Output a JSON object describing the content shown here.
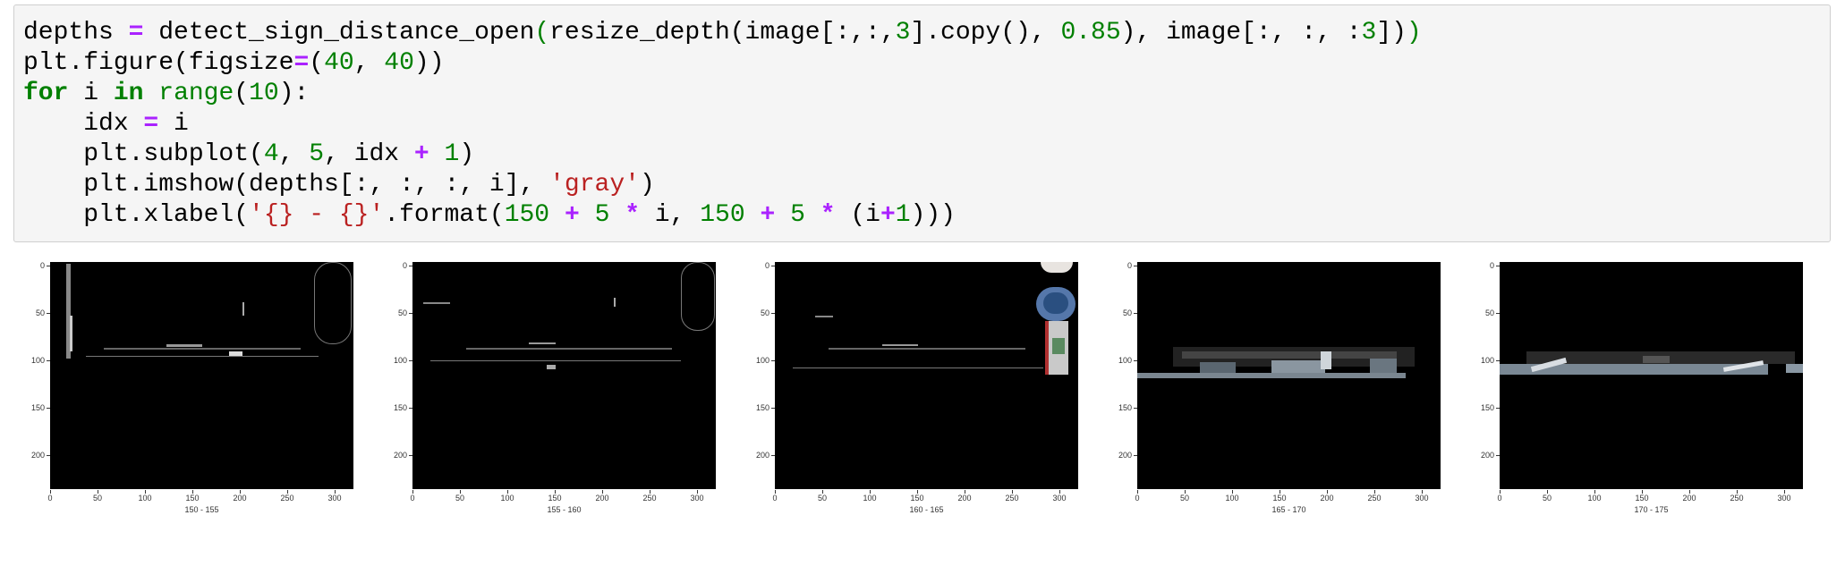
{
  "code_cell": {
    "lines": [
      [
        [
          "n",
          "depths "
        ],
        [
          "op",
          "="
        ],
        [
          "n",
          " detect_sign_distance_open"
        ],
        [
          "bi",
          "("
        ],
        [
          "n",
          "resize_depth(image[:,:,"
        ],
        [
          "num",
          "3"
        ],
        [
          "n",
          "].copy(), "
        ],
        [
          "num",
          "0.85"
        ],
        [
          "n",
          "), image[:, :, :"
        ],
        [
          "num",
          "3"
        ],
        [
          "n",
          "])"
        ],
        [
          "bi",
          ")"
        ]
      ],
      [
        [
          "n",
          "plt.figure(figsize"
        ],
        [
          "op",
          "="
        ],
        [
          "n",
          "("
        ],
        [
          "num",
          "40"
        ],
        [
          "n",
          ", "
        ],
        [
          "num",
          "40"
        ],
        [
          "n",
          "))"
        ]
      ],
      [
        [
          "kw",
          "for"
        ],
        [
          "n",
          " i "
        ],
        [
          "kw",
          "in"
        ],
        [
          "n",
          " "
        ],
        [
          "bi",
          "range"
        ],
        [
          "n",
          "("
        ],
        [
          "num",
          "10"
        ],
        [
          "n",
          "):"
        ]
      ],
      [
        [
          "n",
          "    idx "
        ],
        [
          "op",
          "="
        ],
        [
          "n",
          " i"
        ]
      ],
      [
        [
          "n",
          "    plt.subplot("
        ],
        [
          "num",
          "4"
        ],
        [
          "n",
          ", "
        ],
        [
          "num",
          "5"
        ],
        [
          "n",
          ", idx "
        ],
        [
          "op",
          "+"
        ],
        [
          "n",
          " "
        ],
        [
          "num",
          "1"
        ],
        [
          "n",
          ")"
        ]
      ],
      [
        [
          "n",
          "    plt.imshow(depths[:, :, :, i], "
        ],
        [
          "str",
          "'gray'"
        ],
        [
          "n",
          ")"
        ]
      ],
      [
        [
          "n",
          "    plt.xlabel("
        ],
        [
          "str",
          "'{} - {}'"
        ],
        [
          "n",
          ".format("
        ],
        [
          "num",
          "150"
        ],
        [
          "n",
          " "
        ],
        [
          "op",
          "+"
        ],
        [
          "n",
          " "
        ],
        [
          "num",
          "5"
        ],
        [
          "n",
          " "
        ],
        [
          "op",
          "*"
        ],
        [
          "n",
          " i, "
        ],
        [
          "num",
          "150"
        ],
        [
          "n",
          " "
        ],
        [
          "op",
          "+"
        ],
        [
          "n",
          " "
        ],
        [
          "num",
          "5"
        ],
        [
          "n",
          " "
        ],
        [
          "op",
          "*"
        ],
        [
          "n",
          " (i"
        ],
        [
          "op",
          "+"
        ],
        [
          "num",
          "1"
        ],
        [
          "n",
          ")))"
        ]
      ]
    ]
  },
  "output": {
    "y_ticks": [
      "0",
      "50",
      "100",
      "150",
      "200"
    ],
    "x_ticks": [
      "0",
      "50",
      "100",
      "150",
      "200",
      "250",
      "300"
    ],
    "subplots": [
      {
        "xlabel": "150 - 155"
      },
      {
        "xlabel": "155 - 160"
      },
      {
        "xlabel": "160 - 165"
      },
      {
        "xlabel": "165 - 170"
      },
      {
        "xlabel": "170 - 175"
      }
    ]
  }
}
